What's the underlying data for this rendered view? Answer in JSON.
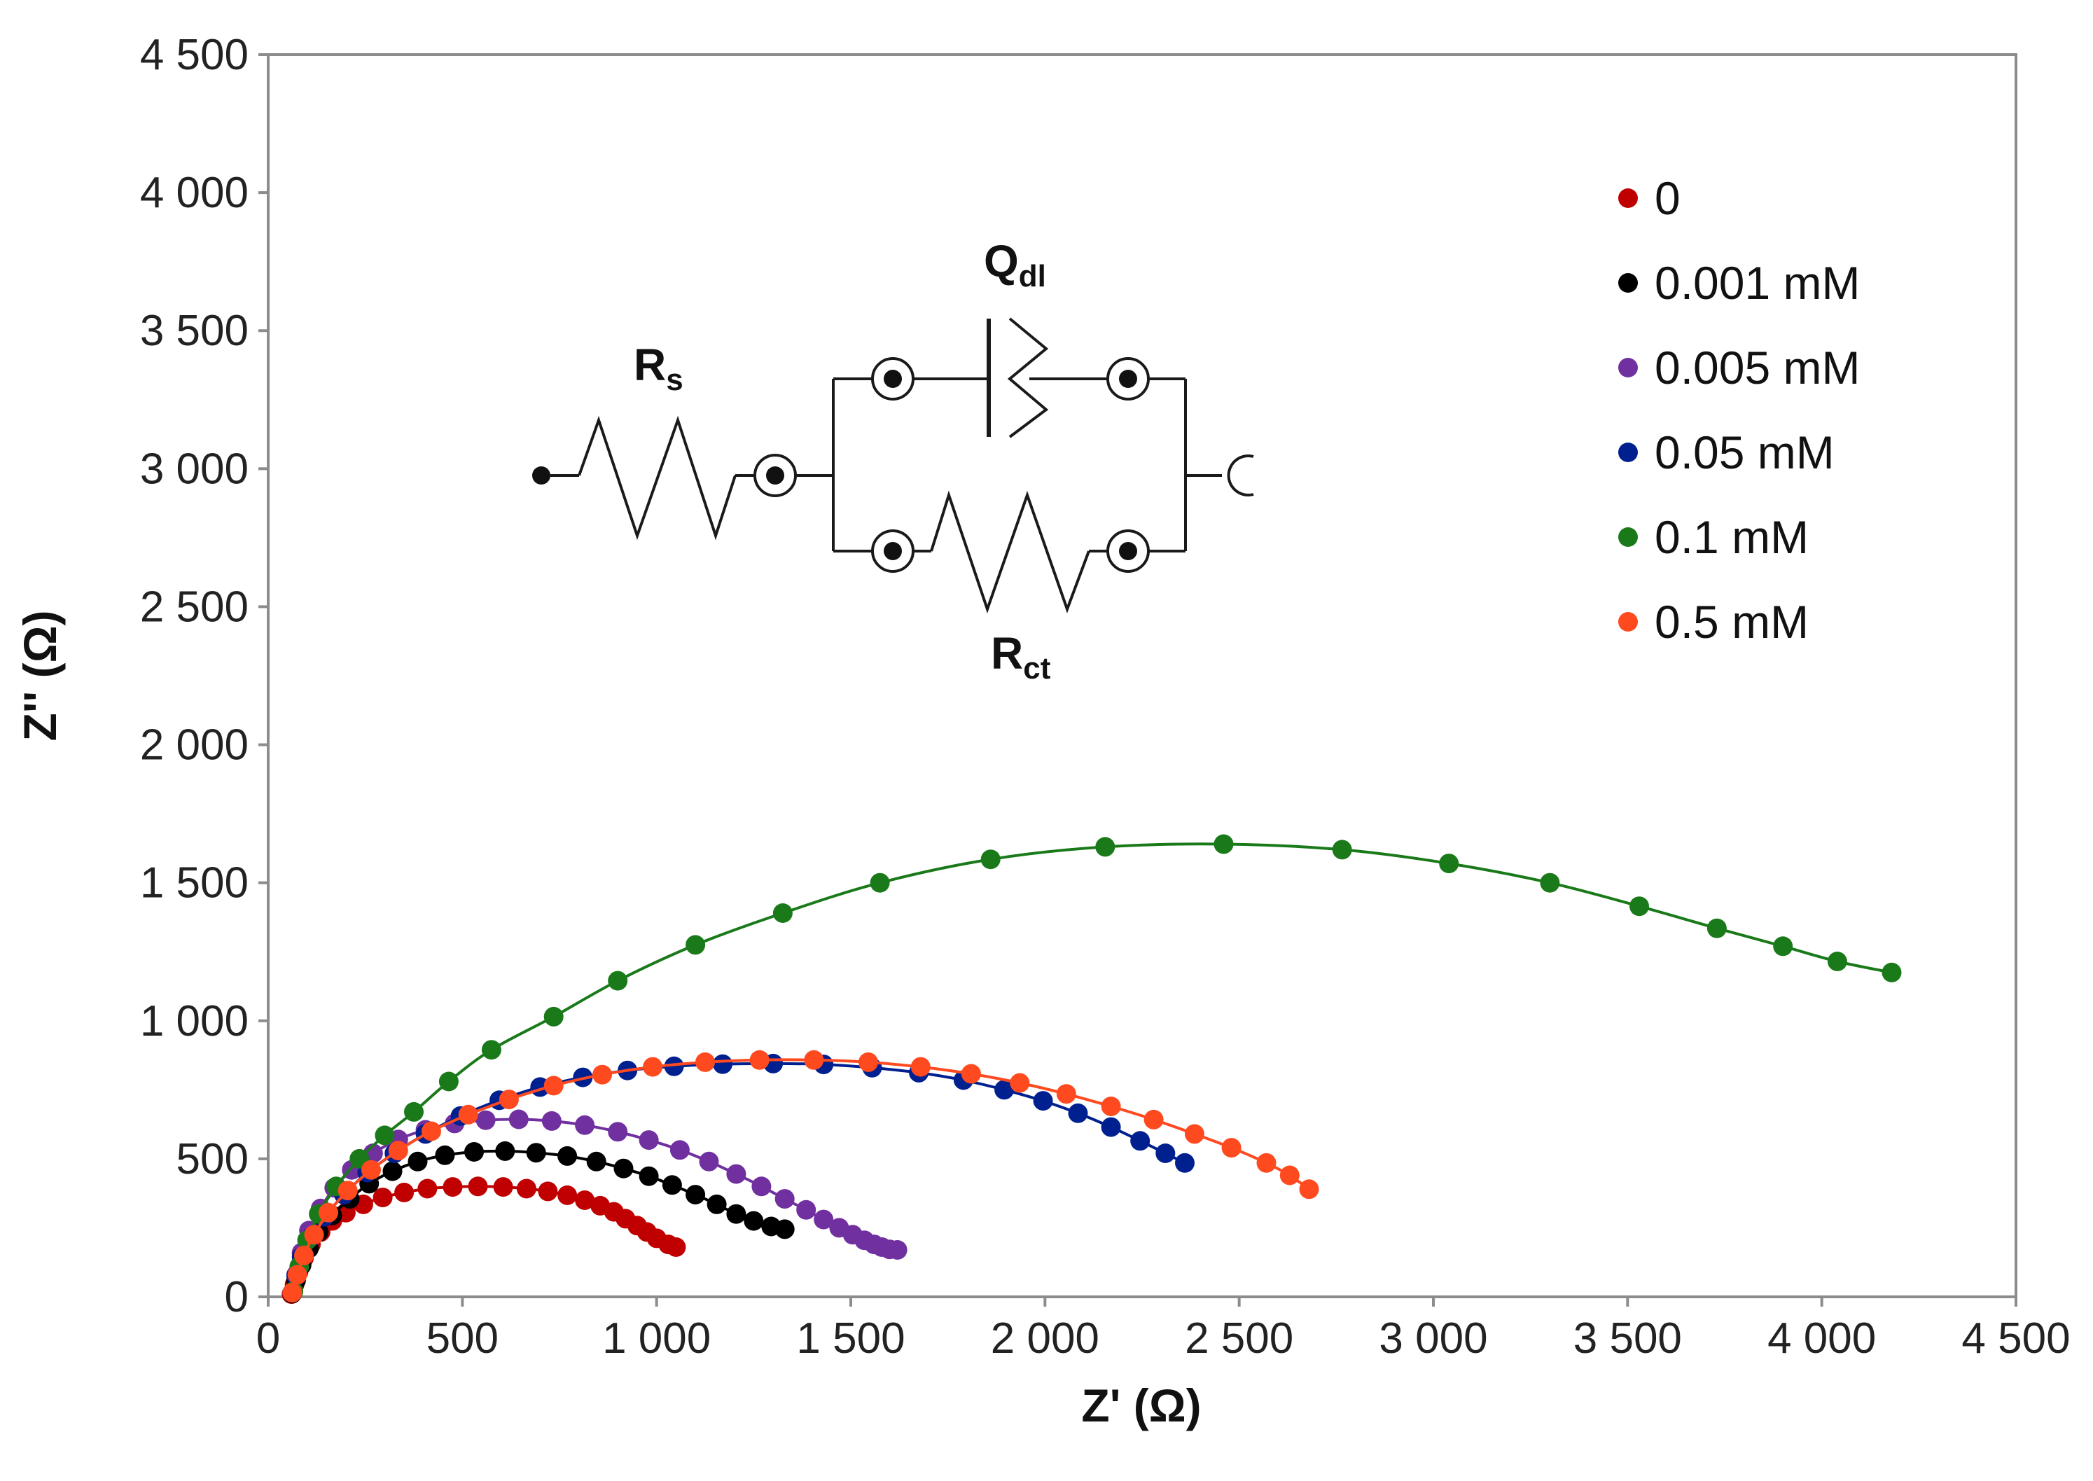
{
  "chart_data": {
    "type": "scatter",
    "title": "",
    "xlabel": "Z' (Ω)",
    "ylabel": "Z'' (Ω)",
    "xlim": [
      0,
      4500
    ],
    "ylim": [
      0,
      4500
    ],
    "xticks": [
      0,
      500,
      1000,
      1500,
      2000,
      2500,
      3000,
      3500,
      4000,
      4500
    ],
    "yticks": [
      0,
      500,
      1000,
      1500,
      2000,
      2500,
      3000,
      3500,
      4000,
      4500
    ],
    "xtick_labels": [
      "0",
      "500",
      "1 000",
      "1 500",
      "2 000",
      "2 500",
      "3 000",
      "3 500",
      "4 000",
      "4 500"
    ],
    "ytick_labels": [
      "0",
      "500",
      "1 000",
      "1 500",
      "2 000",
      "2 500",
      "3 000",
      "3 500",
      "4 000",
      "4 500"
    ],
    "grid": false,
    "legend_position": "top-right",
    "circuit": {
      "rs_main": "R",
      "rs_sub": "s",
      "q_main": "Q",
      "q_sub": "dl",
      "rct_main": "R",
      "rct_sub": "ct"
    },
    "series": [
      {
        "name": "0",
        "color": "#c00000",
        "points": [
          [
            60,
            10
          ],
          [
            68,
            45
          ],
          [
            78,
            90
          ],
          [
            92,
            140
          ],
          [
            110,
            190
          ],
          [
            135,
            235
          ],
          [
            165,
            275
          ],
          [
            200,
            305
          ],
          [
            245,
            335
          ],
          [
            295,
            360
          ],
          [
            350,
            378
          ],
          [
            410,
            392
          ],
          [
            475,
            398
          ],
          [
            540,
            400
          ],
          [
            605,
            398
          ],
          [
            665,
            392
          ],
          [
            720,
            382
          ],
          [
            770,
            368
          ],
          [
            815,
            350
          ],
          [
            855,
            330
          ],
          [
            890,
            308
          ],
          [
            920,
            283
          ],
          [
            950,
            258
          ],
          [
            975,
            235
          ],
          [
            1000,
            212
          ],
          [
            1030,
            190
          ],
          [
            1050,
            180
          ]
        ]
      },
      {
        "name": "0.001 mM",
        "color": "#000000",
        "points": [
          [
            62,
            12
          ],
          [
            72,
            60
          ],
          [
            86,
            115
          ],
          [
            105,
            175
          ],
          [
            130,
            235
          ],
          [
            165,
            295
          ],
          [
            210,
            355
          ],
          [
            260,
            410
          ],
          [
            320,
            455
          ],
          [
            385,
            490
          ],
          [
            455,
            513
          ],
          [
            530,
            525
          ],
          [
            610,
            528
          ],
          [
            690,
            522
          ],
          [
            770,
            510
          ],
          [
            845,
            490
          ],
          [
            915,
            465
          ],
          [
            980,
            437
          ],
          [
            1040,
            405
          ],
          [
            1100,
            370
          ],
          [
            1155,
            335
          ],
          [
            1205,
            300
          ],
          [
            1250,
            275
          ],
          [
            1295,
            255
          ],
          [
            1330,
            245
          ]
        ]
      },
      {
        "name": "0.005 mM",
        "color": "#7030a0",
        "points": [
          [
            62,
            15
          ],
          [
            72,
            80
          ],
          [
            86,
            160
          ],
          [
            105,
            240
          ],
          [
            135,
            320
          ],
          [
            170,
            395
          ],
          [
            215,
            460
          ],
          [
            270,
            520
          ],
          [
            335,
            570
          ],
          [
            405,
            605
          ],
          [
            480,
            628
          ],
          [
            560,
            640
          ],
          [
            645,
            643
          ],
          [
            730,
            637
          ],
          [
            815,
            622
          ],
          [
            900,
            598
          ],
          [
            980,
            568
          ],
          [
            1060,
            532
          ],
          [
            1135,
            490
          ],
          [
            1205,
            445
          ],
          [
            1270,
            400
          ],
          [
            1330,
            355
          ],
          [
            1385,
            315
          ],
          [
            1430,
            280
          ],
          [
            1470,
            250
          ],
          [
            1505,
            225
          ],
          [
            1535,
            205
          ],
          [
            1560,
            190
          ],
          [
            1580,
            180
          ],
          [
            1600,
            172
          ],
          [
            1620,
            170
          ]
        ]
      },
      {
        "name": "0.05 mM",
        "color": "#002090",
        "points": [
          [
            62,
            15
          ],
          [
            72,
            75
          ],
          [
            86,
            145
          ],
          [
            110,
            215
          ],
          [
            145,
            290
          ],
          [
            195,
            370
          ],
          [
            255,
            450
          ],
          [
            325,
            520
          ],
          [
            405,
            590
          ],
          [
            495,
            655
          ],
          [
            595,
            712
          ],
          [
            700,
            760
          ],
          [
            810,
            795
          ],
          [
            925,
            820
          ],
          [
            1045,
            835
          ],
          [
            1170,
            843
          ],
          [
            1300,
            845
          ],
          [
            1430,
            842
          ],
          [
            1555,
            830
          ],
          [
            1675,
            812
          ],
          [
            1790,
            785
          ],
          [
            1895,
            750
          ],
          [
            1995,
            710
          ],
          [
            2085,
            665
          ],
          [
            2170,
            615
          ],
          [
            2245,
            565
          ],
          [
            2310,
            520
          ],
          [
            2360,
            485
          ]
        ]
      },
      {
        "name": "0.1 mM",
        "color": "#1a7a1a",
        "points": [
          [
            65,
            20
          ],
          [
            80,
            110
          ],
          [
            100,
            205
          ],
          [
            130,
            300
          ],
          [
            175,
            400
          ],
          [
            235,
            500
          ],
          [
            300,
            585
          ],
          [
            375,
            670
          ],
          [
            465,
            780
          ],
          [
            575,
            895
          ],
          [
            735,
            1015
          ],
          [
            900,
            1145
          ],
          [
            1100,
            1275
          ],
          [
            1325,
            1390
          ],
          [
            1575,
            1500
          ],
          [
            1860,
            1585
          ],
          [
            2155,
            1630
          ],
          [
            2460,
            1640
          ],
          [
            2765,
            1620
          ],
          [
            3040,
            1570
          ],
          [
            3300,
            1500
          ],
          [
            3530,
            1415
          ],
          [
            3730,
            1335
          ],
          [
            3900,
            1270
          ],
          [
            4040,
            1215
          ],
          [
            4180,
            1175
          ]
        ]
      },
      {
        "name": "0.5 mM",
        "color": "#ff4a20",
        "points": [
          [
            62,
            15
          ],
          [
            75,
            80
          ],
          [
            92,
            150
          ],
          [
            118,
            225
          ],
          [
            155,
            305
          ],
          [
            205,
            385
          ],
          [
            265,
            460
          ],
          [
            335,
            530
          ],
          [
            420,
            600
          ],
          [
            515,
            660
          ],
          [
            620,
            715
          ],
          [
            735,
            765
          ],
          [
            860,
            805
          ],
          [
            990,
            833
          ],
          [
            1125,
            850
          ],
          [
            1265,
            858
          ],
          [
            1405,
            858
          ],
          [
            1545,
            850
          ],
          [
            1680,
            833
          ],
          [
            1810,
            808
          ],
          [
            1935,
            775
          ],
          [
            2055,
            735
          ],
          [
            2170,
            690
          ],
          [
            2280,
            642
          ],
          [
            2385,
            590
          ],
          [
            2480,
            540
          ],
          [
            2570,
            485
          ],
          [
            2630,
            440
          ],
          [
            2680,
            390
          ]
        ]
      }
    ]
  }
}
